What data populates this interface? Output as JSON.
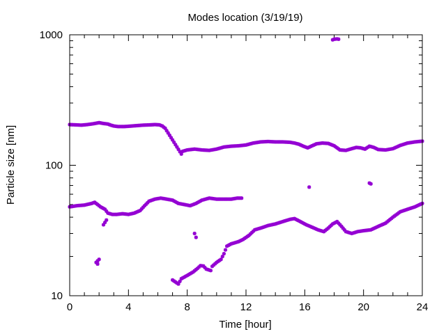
{
  "chart_data": {
    "type": "scatter",
    "title": "Modes location (3/19/19)",
    "xlabel": "Time [hour]",
    "ylabel": "Particle size [nm]",
    "xlim": [
      0,
      24
    ],
    "ylim": [
      10,
      1000
    ],
    "y_scale": "log",
    "grid": false,
    "legend": "none",
    "marker_color": "#9400d3",
    "x_ticks": [
      {
        "value": 0,
        "label": "0"
      },
      {
        "value": 4,
        "label": "4"
      },
      {
        "value": 8,
        "label": "8"
      },
      {
        "value": 12,
        "label": "12"
      },
      {
        "value": 16,
        "label": "16"
      },
      {
        "value": 20,
        "label": "20"
      },
      {
        "value": 24,
        "label": "24"
      }
    ],
    "y_ticks": [
      {
        "value": 10,
        "label": "10"
      },
      {
        "value": 100,
        "label": "100"
      },
      {
        "value": 1000,
        "label": "1000"
      }
    ],
    "series": [
      {
        "points": [
          [
            0.0,
            205
          ],
          [
            0.4,
            204
          ],
          [
            0.8,
            203
          ],
          [
            1.2,
            205
          ],
          [
            1.6,
            208
          ],
          [
            2.0,
            212
          ],
          [
            2.3,
            209
          ],
          [
            2.6,
            207
          ],
          [
            2.8,
            203
          ],
          [
            3.0,
            200
          ],
          [
            3.3,
            198
          ],
          [
            3.7,
            198
          ],
          [
            4.0,
            199
          ],
          [
            4.5,
            201
          ],
          [
            5.0,
            203
          ],
          [
            5.5,
            204
          ],
          [
            5.8,
            205
          ],
          [
            6.1,
            204
          ],
          [
            6.3,
            200
          ],
          [
            6.5,
            192
          ],
          [
            7.6,
            122
          ],
          [
            7.7,
            128
          ],
          [
            8.0,
            131
          ],
          [
            8.5,
            133
          ],
          [
            9.0,
            131
          ],
          [
            9.5,
            130
          ],
          [
            10.0,
            133
          ],
          [
            10.5,
            138
          ],
          [
            11.0,
            140
          ],
          [
            11.5,
            141
          ],
          [
            12.0,
            143
          ],
          [
            12.5,
            148
          ],
          [
            13.0,
            151
          ],
          [
            13.5,
            152
          ],
          [
            14.0,
            151
          ],
          [
            14.5,
            151
          ],
          [
            15.0,
            150
          ],
          [
            15.3,
            148
          ],
          [
            15.6,
            145
          ],
          [
            15.9,
            140
          ],
          [
            16.2,
            136
          ],
          [
            16.5,
            141
          ],
          [
            16.8,
            146
          ],
          [
            17.2,
            148
          ],
          [
            17.6,
            147
          ],
          [
            18.0,
            141
          ],
          [
            18.4,
            131
          ],
          [
            18.8,
            130
          ],
          [
            19.2,
            134
          ],
          [
            19.5,
            137
          ],
          [
            19.8,
            136
          ],
          [
            20.1,
            133
          ],
          [
            20.4,
            140
          ],
          [
            20.7,
            137
          ],
          [
            21.0,
            132
          ],
          [
            21.5,
            131
          ],
          [
            22.0,
            134
          ],
          [
            22.5,
            142
          ],
          [
            23.0,
            148
          ],
          [
            23.5,
            151
          ],
          [
            24.0,
            153
          ],
          [
            17.9,
            915
          ],
          [
            18.0,
            925
          ],
          [
            18.2,
            930
          ],
          [
            18.3,
            925
          ],
          [
            16.3,
            68
          ],
          [
            20.4,
            73
          ],
          [
            20.5,
            72
          ]
        ]
      },
      {
        "points": [
          [
            0.0,
            48
          ],
          [
            0.5,
            49
          ],
          [
            1.0,
            49.5
          ],
          [
            1.5,
            51
          ],
          [
            1.7,
            52
          ],
          [
            1.9,
            50
          ],
          [
            2.1,
            48
          ],
          [
            2.4,
            46
          ],
          [
            2.6,
            43
          ],
          [
            2.9,
            42
          ],
          [
            3.2,
            42
          ],
          [
            3.6,
            42.5
          ],
          [
            4.0,
            42
          ],
          [
            4.4,
            43
          ],
          [
            4.8,
            45
          ],
          [
            5.1,
            49
          ],
          [
            5.4,
            53
          ],
          [
            5.8,
            55
          ],
          [
            6.2,
            56
          ],
          [
            6.6,
            55
          ],
          [
            7.0,
            54
          ],
          [
            7.4,
            51
          ],
          [
            7.8,
            50
          ],
          [
            8.2,
            49
          ],
          [
            8.6,
            51
          ],
          [
            9.0,
            54
          ],
          [
            9.5,
            56
          ],
          [
            10.0,
            55
          ],
          [
            10.5,
            55
          ],
          [
            11.0,
            55
          ],
          [
            11.4,
            56
          ],
          [
            11.7,
            56
          ],
          [
            1.8,
            18
          ],
          [
            2.0,
            19
          ],
          [
            1.9,
            17.5
          ],
          [
            2.3,
            35
          ],
          [
            2.5,
            38
          ],
          [
            7.0,
            13.2
          ],
          [
            7.4,
            12.3
          ],
          [
            7.6,
            13.5
          ],
          [
            8.0,
            14.3
          ],
          [
            8.4,
            15.2
          ],
          [
            8.7,
            16.2
          ],
          [
            8.9,
            17
          ],
          [
            9.1,
            16.9
          ],
          [
            9.3,
            16
          ],
          [
            9.6,
            15.6
          ],
          [
            9.7,
            16.8
          ],
          [
            10.0,
            18
          ],
          [
            10.3,
            19
          ],
          [
            10.5,
            21
          ],
          [
            10.7,
            24
          ],
          [
            11.0,
            25
          ],
          [
            11.5,
            26
          ],
          [
            11.8,
            27
          ],
          [
            12.2,
            29
          ],
          [
            12.6,
            32
          ],
          [
            13.0,
            33
          ],
          [
            13.5,
            34.5
          ],
          [
            14.0,
            35.5
          ],
          [
            14.5,
            37
          ],
          [
            15.0,
            38.5
          ],
          [
            15.3,
            39
          ],
          [
            15.7,
            37
          ],
          [
            16.1,
            35
          ],
          [
            16.5,
            33.5
          ],
          [
            16.9,
            32
          ],
          [
            17.3,
            31
          ],
          [
            17.6,
            33
          ],
          [
            17.9,
            35.5
          ],
          [
            18.2,
            37
          ],
          [
            18.5,
            34
          ],
          [
            18.8,
            31
          ],
          [
            19.2,
            30
          ],
          [
            19.6,
            31
          ],
          [
            20.0,
            31.5
          ],
          [
            20.5,
            32
          ],
          [
            21.0,
            34
          ],
          [
            21.5,
            36
          ],
          [
            22.0,
            40
          ],
          [
            22.5,
            44
          ],
          [
            23.0,
            46
          ],
          [
            23.5,
            48
          ],
          [
            24.0,
            51
          ],
          [
            8.5,
            30
          ],
          [
            8.6,
            28
          ]
        ]
      }
    ]
  }
}
